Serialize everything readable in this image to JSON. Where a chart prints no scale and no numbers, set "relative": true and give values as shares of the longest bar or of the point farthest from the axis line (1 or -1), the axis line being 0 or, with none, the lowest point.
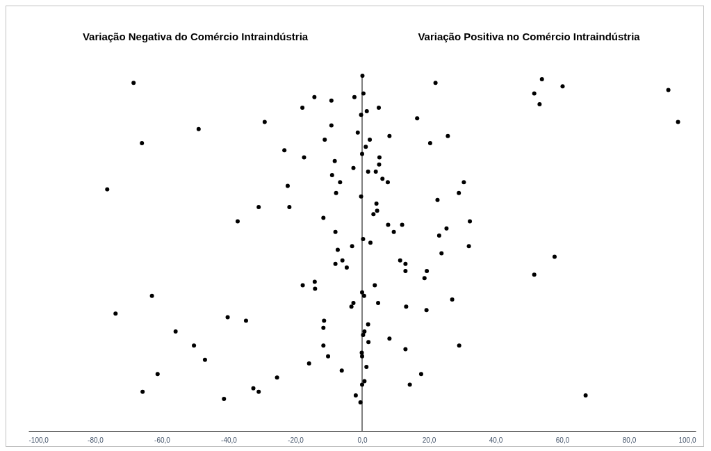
{
  "chart_data": {
    "type": "scatter",
    "relative": true,
    "marker": "circle",
    "annotations": [
      "Variação Negativa do Comércio Intraindústria",
      "Variação Positiva no Comércio Intraindústria"
    ],
    "xlim": [
      -100,
      100
    ],
    "xticks": [
      {
        "value": -100,
        "label": "-100,0"
      },
      {
        "value": -80,
        "label": "-80,0"
      },
      {
        "value": -60,
        "label": "-60,0"
      },
      {
        "value": -40,
        "label": "-40,0"
      },
      {
        "value": -20,
        "label": "-20,0"
      },
      {
        "value": 0,
        "label": "0,0"
      },
      {
        "value": 20,
        "label": "20,0"
      },
      {
        "value": 40,
        "label": "40,0"
      },
      {
        "value": 60,
        "label": "60,0"
      },
      {
        "value": 80,
        "label": "80,0"
      },
      {
        "value": 100,
        "label": "100,0"
      }
    ],
    "ref_lines": [
      {
        "axis": "x",
        "value": 0,
        "color": "#000000"
      }
    ],
    "series": [
      {
        "color": "#000000",
        "x": [
          -68.5,
          -49.0,
          -66.0,
          -76.4,
          -63.0,
          -73.9,
          -40.3,
          -55.9,
          -50.4,
          -47.1,
          -61.3,
          -65.8,
          -41.4,
          0.1,
          -14.3,
          -9.2,
          -2.3,
          0.4,
          -17.9,
          -0.3,
          -29.2,
          -9.2,
          -1.3,
          -11.2,
          -23.3,
          -17.4,
          -8.2,
          -2.6,
          -9.0,
          -6.6,
          -22.3,
          -7.8,
          -0.3,
          -31.0,
          -21.8,
          -37.3,
          -11.6,
          -8.0,
          -3.0,
          -7.3,
          -5.9,
          -8.0,
          -4.6,
          -17.8,
          -14.2,
          -14.1,
          -2.6,
          -3.2,
          -34.8,
          -11.4,
          -11.6,
          -11.6,
          -10.2,
          -15.9,
          -6.1,
          -25.5,
          -32.6,
          -31.0,
          -1.9,
          -0.5,
          22.0,
          5.0,
          1.4,
          16.5,
          8.2,
          25.7,
          2.3,
          20.4,
          1.1,
          0.0,
          5.2,
          5.1,
          4.1,
          1.8,
          6.1,
          7.7,
          30.5,
          29.0,
          22.6,
          4.3,
          4.5,
          3.4,
          32.3,
          7.8,
          12.0,
          25.3,
          9.5,
          23.1,
          0.3,
          2.5,
          32.0,
          23.8,
          11.4,
          13.0,
          13.0,
          19.4,
          18.7,
          3.8,
          0.0,
          0.6,
          27.0,
          4.8,
          13.2,
          19.3,
          1.8,
          0.7,
          0.3,
          1.9,
          8.2,
          13.0,
          29.1,
          -0.1,
          0.0,
          1.3,
          17.7,
          0.7,
          0.0,
          14.3,
          53.9,
          60.1,
          51.6,
          53.2,
          91.8,
          94.7,
          57.7,
          51.6,
          67.0
        ],
        "values": [
          0.98,
          0.85,
          0.81,
          0.68,
          0.38,
          0.33,
          0.32,
          0.28,
          0.24,
          0.2,
          0.16,
          0.11,
          0.09,
          1.0,
          0.94,
          0.93,
          0.94,
          0.95,
          0.91,
          0.89,
          0.87,
          0.86,
          0.84,
          0.82,
          0.79,
          0.77,
          0.76,
          0.74,
          0.72,
          0.7,
          0.69,
          0.67,
          0.66,
          0.63,
          0.63,
          0.59,
          0.6,
          0.56,
          0.52,
          0.51,
          0.48,
          0.47,
          0.46,
          0.41,
          0.42,
          0.4,
          0.36,
          0.35,
          0.31,
          0.31,
          0.29,
          0.24,
          0.21,
          0.19,
          0.17,
          0.15,
          0.12,
          0.11,
          0.1,
          0.08,
          0.98,
          0.91,
          0.9,
          0.88,
          0.83,
          0.83,
          0.82,
          0.81,
          0.8,
          0.78,
          0.77,
          0.75,
          0.73,
          0.73,
          0.71,
          0.7,
          0.7,
          0.67,
          0.65,
          0.64,
          0.62,
          0.61,
          0.59,
          0.58,
          0.58,
          0.57,
          0.56,
          0.55,
          0.54,
          0.53,
          0.52,
          0.5,
          0.48,
          0.47,
          0.45,
          0.45,
          0.43,
          0.41,
          0.39,
          0.38,
          0.37,
          0.36,
          0.35,
          0.34,
          0.3,
          0.28,
          0.27,
          0.25,
          0.26,
          0.23,
          0.24,
          0.22,
          0.21,
          0.18,
          0.16,
          0.14,
          0.13,
          0.13,
          0.99,
          0.97,
          0.95,
          0.92,
          0.96,
          0.87,
          0.49,
          0.44,
          0.1
        ]
      }
    ]
  }
}
